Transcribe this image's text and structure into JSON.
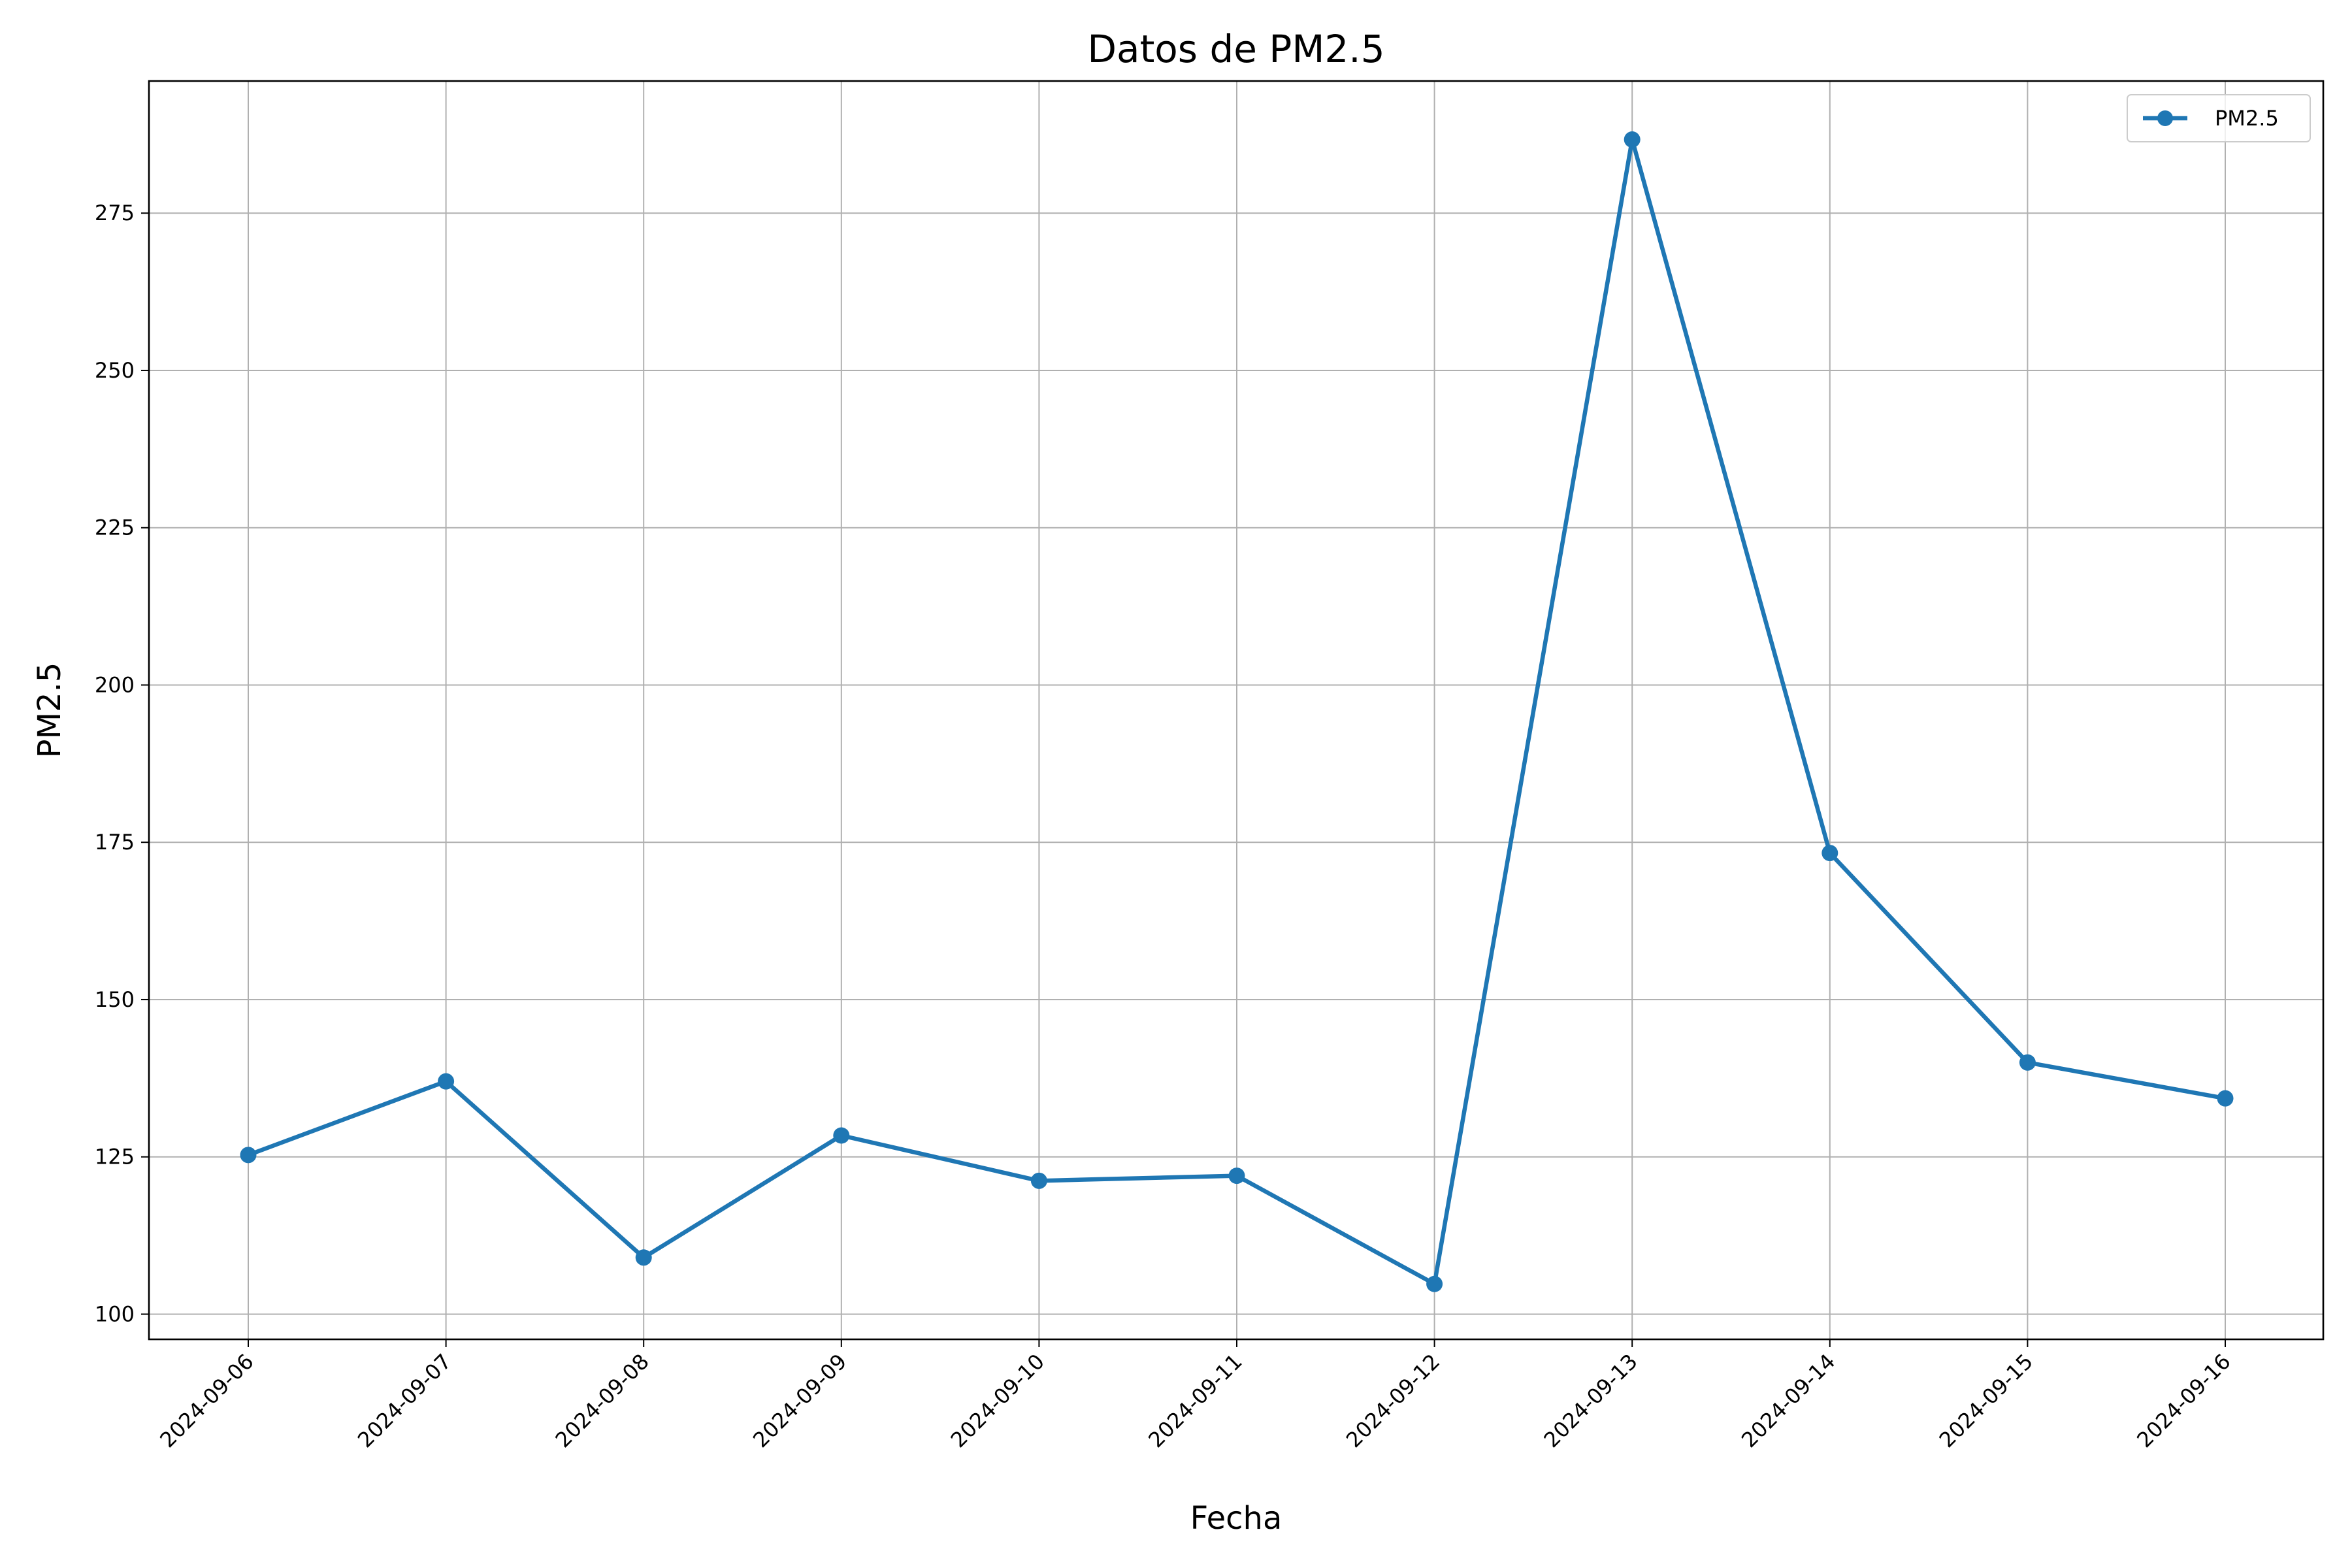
{
  "chart_data": {
    "type": "line",
    "title": "Datos de PM2.5",
    "xlabel": "Fecha",
    "ylabel": "PM2.5",
    "categories": [
      "2024-09-06",
      "2024-09-07",
      "2024-09-08",
      "2024-09-09",
      "2024-09-10",
      "2024-09-11",
      "2024-09-12",
      "2024-09-13",
      "2024-09-14",
      "2024-09-15",
      "2024-09-16"
    ],
    "series": [
      {
        "name": "PM2.5",
        "color": "#1f77b4",
        "values": [
          125.3,
          137.0,
          109.0,
          128.4,
          121.2,
          122.0,
          104.8,
          286.7,
          173.3,
          140.0,
          134.3
        ]
      }
    ],
    "yticks": [
      100,
      125,
      150,
      175,
      200,
      225,
      250,
      275
    ],
    "ylim": [
      96,
      296
    ],
    "grid": true,
    "legend_position": "top-right"
  }
}
